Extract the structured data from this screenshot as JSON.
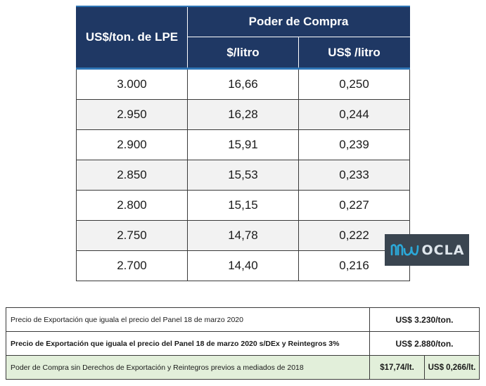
{
  "main_table": {
    "header_lpe": "US$/ton. de LPE",
    "header_poder": "Poder de Compra",
    "header_col2": "$/litro",
    "header_col3": "US$ /litro",
    "rows": [
      {
        "lpe": "3.000",
        "peso": "16,66",
        "usd": "0,250"
      },
      {
        "lpe": "2.950",
        "peso": "16,28",
        "usd": "0,244"
      },
      {
        "lpe": "2.900",
        "peso": "15,91",
        "usd": "0,239"
      },
      {
        "lpe": "2.850",
        "peso": "15,53",
        "usd": "0,233"
      },
      {
        "lpe": "2.800",
        "peso": "15,15",
        "usd": "0,227"
      },
      {
        "lpe": "2.750",
        "peso": "14,78",
        "usd": "0,222"
      },
      {
        "lpe": "2.700",
        "peso": "14,40",
        "usd": "0,216"
      }
    ]
  },
  "logo": {
    "text": "OCLA",
    "icon": "ocla-wave-logo-icon",
    "background": "#3a4550"
  },
  "bottom_table": {
    "row1": {
      "label": "Precio de Exportación que iguala el precio del Panel 18 de marzo 2020",
      "value": "US$ 3.230/ton."
    },
    "row2": {
      "label": "Precio de Exportación que iguala el precio del Panel 18 de marzo 2020 s/DEx y Reintegros 3%",
      "value": "US$ 2.880/ton."
    },
    "row3": {
      "label": "Poder de Compra sin Derechos de Exportación y Reintegros previos a mediados de 2018",
      "value_peso": "$17,74/lt.",
      "value_usd": "US$ 0,266/lt."
    }
  },
  "colors": {
    "header_bg": "#1f3864",
    "header_accent": "#2e75b6",
    "alt_row_bg": "#f2f2f2",
    "green_row_bg": "#e2efda"
  }
}
